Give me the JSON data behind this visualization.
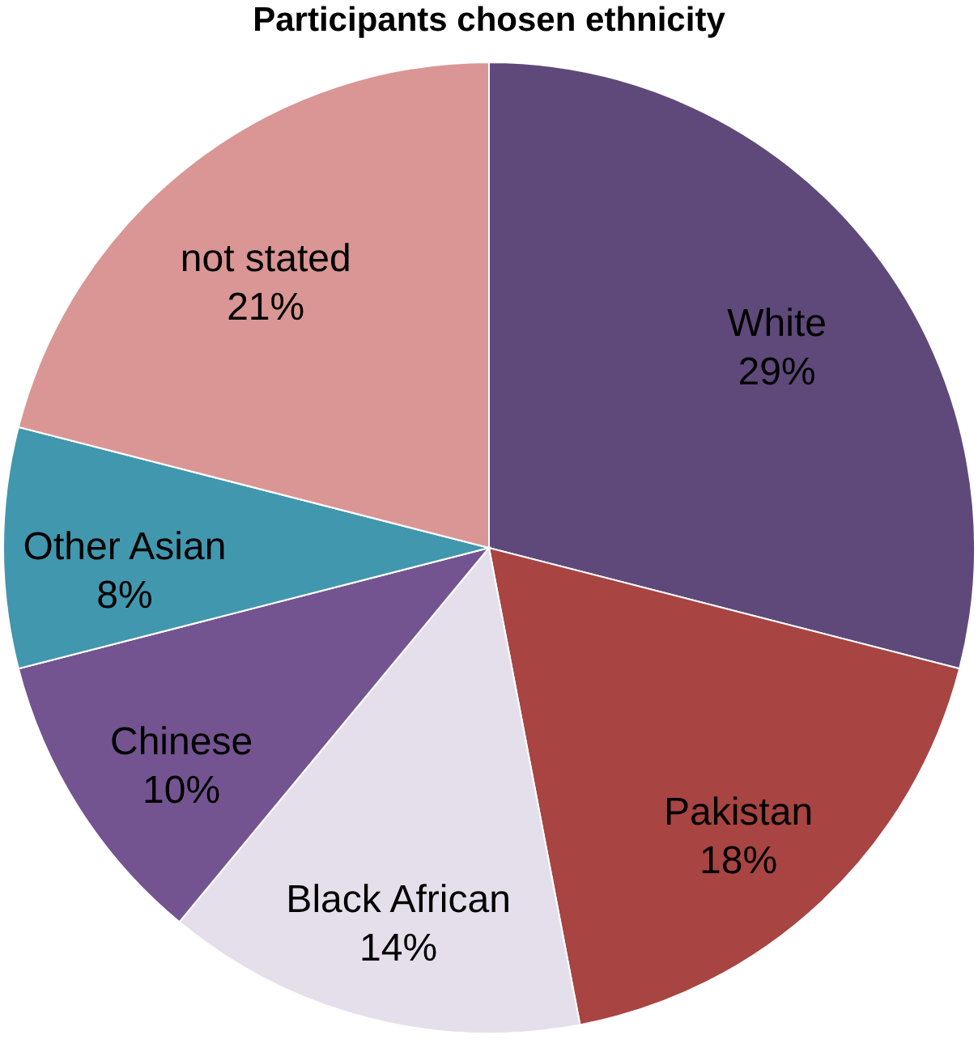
{
  "chart_data": {
    "type": "pie",
    "title": "Participants chosen ethnicity",
    "categories": [
      "White",
      "Pakistan",
      "Black African",
      "Chinese",
      "Other Asian",
      "not stated"
    ],
    "values": [
      29,
      18,
      14,
      10,
      8,
      21
    ],
    "colors": [
      "#5f497a",
      "#a84442",
      "#e5dfec",
      "#735490",
      "#4197ae",
      "#d99694"
    ],
    "value_labels": [
      "29%",
      "18%",
      "14%",
      "10%",
      "8%",
      "21%"
    ],
    "legend": false
  }
}
